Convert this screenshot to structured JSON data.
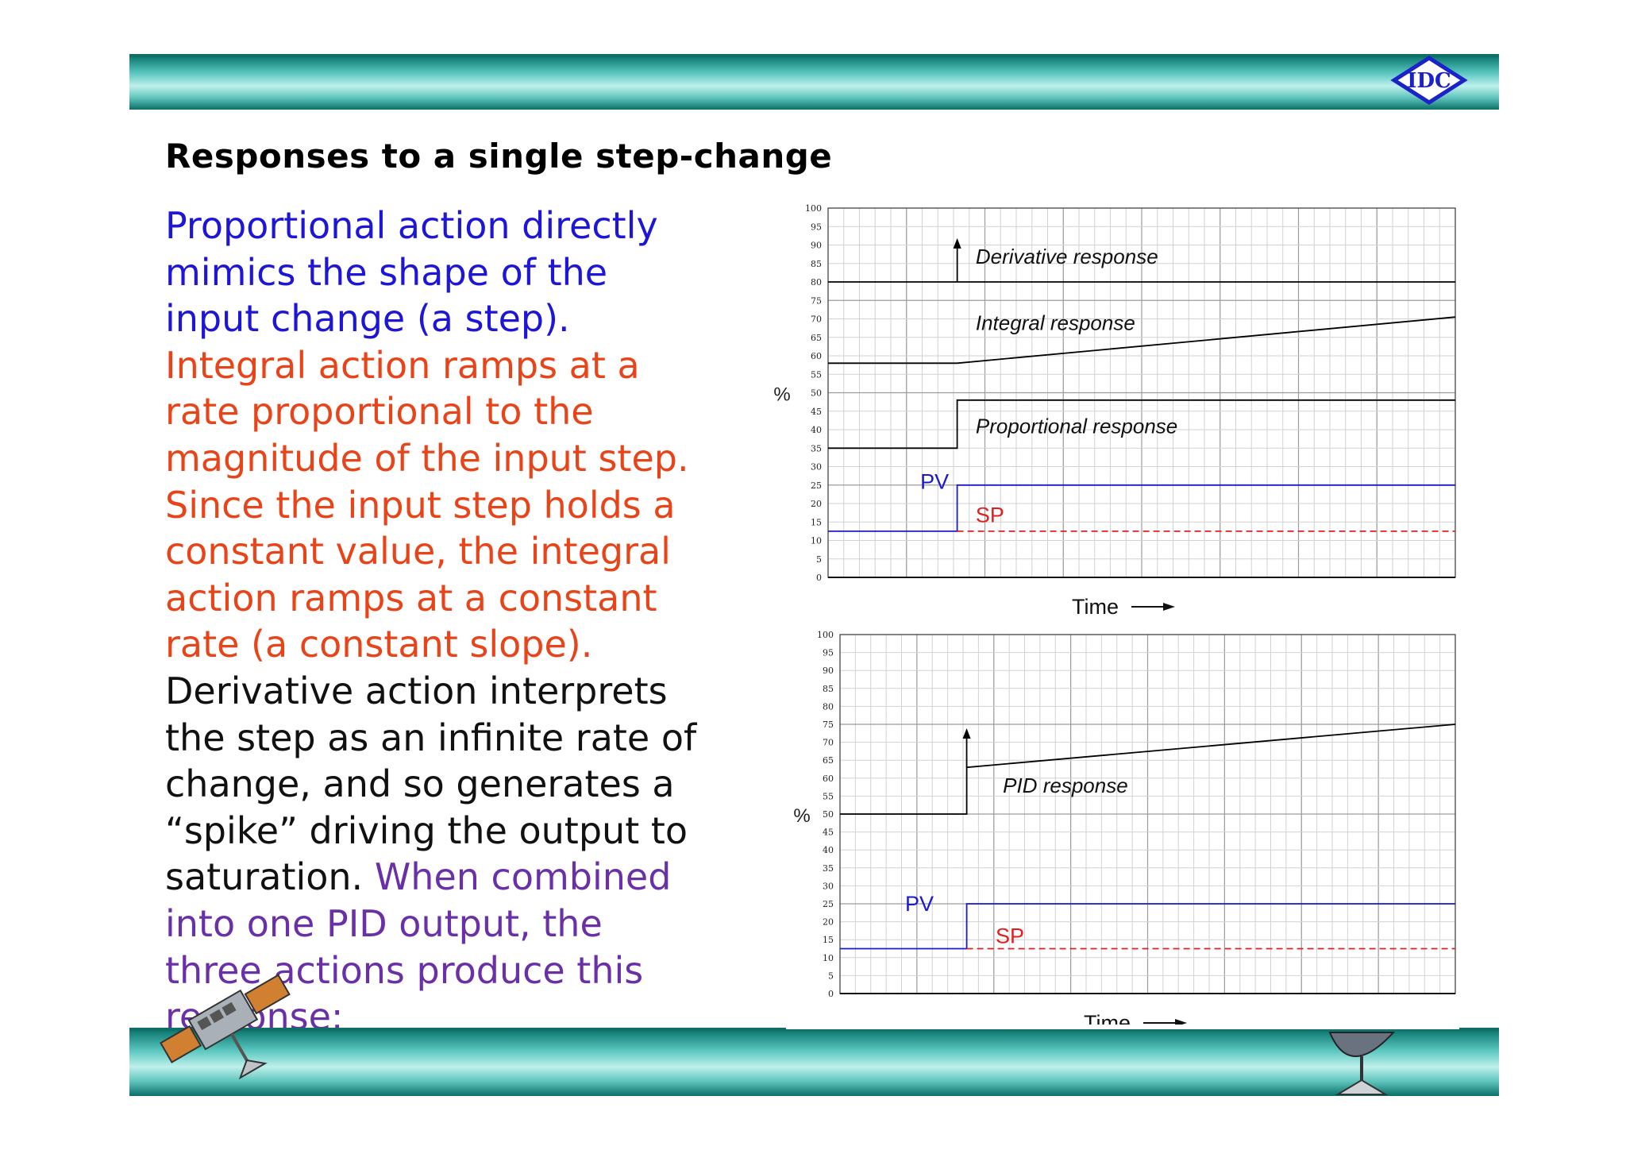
{
  "slide": {
    "title": "Responses to a single step-change",
    "logo_text": "IDC",
    "paragraph": [
      {
        "text": "Proportional action directly mimics the shape of the input change (a step). ",
        "color": "blue"
      },
      {
        "text": "Integral action ramps at a rate proportional to the magnitude of the input step. Since the input step holds a constant value, the integral action ramps at a constant rate (a constant slope). ",
        "color": "orange"
      },
      {
        "text": "Derivative action interprets the step as an infinite rate of change, and so generates a “spike” driving the output to saturation. ",
        "color": "black"
      },
      {
        "text": "When combined into one PID output, the three actions produce this response:",
        "color": "purple"
      }
    ]
  },
  "colors": {
    "band_dark": "#0f6e66",
    "band_light": "#bff0ec",
    "text_blue": "#1e16d6",
    "text_orange": "#e8441a",
    "text_purple": "#6a30a8",
    "pv": "#1a1ad0",
    "sp": "#e02020"
  },
  "chart_data": [
    {
      "type": "line",
      "ylabel": "%",
      "xlabel": "Time",
      "ylim": [
        0,
        100
      ],
      "yticks": [
        0,
        5,
        10,
        15,
        20,
        25,
        30,
        35,
        40,
        45,
        50,
        55,
        60,
        65,
        70,
        75,
        80,
        85,
        90,
        95,
        100
      ],
      "xlim": [
        0,
        34
      ],
      "step_x": 7,
      "grid": true,
      "series": [
        {
          "name": "Derivative response",
          "x": [
            0,
            7,
            7,
            34
          ],
          "y": [
            80,
            80,
            80,
            80
          ],
          "spike": {
            "x": 7,
            "from": 80,
            "to": 91
          },
          "color": "#000000",
          "label_at": [
            8,
            85
          ]
        },
        {
          "name": "Integral response",
          "x": [
            0,
            7,
            34
          ],
          "y": [
            58,
            58,
            70.5
          ],
          "color": "#000000",
          "label_at": [
            8,
            67
          ]
        },
        {
          "name": "Proportional response",
          "x": [
            0,
            7,
            7,
            34
          ],
          "y": [
            35,
            35,
            48,
            48
          ],
          "color": "#000000",
          "label_at": [
            8,
            39
          ]
        },
        {
          "name": "PV",
          "x": [
            0,
            7,
            7,
            34
          ],
          "y": [
            12.5,
            12.5,
            25,
            25
          ],
          "color": "#1a1ad0",
          "label_at": [
            5,
            24
          ]
        },
        {
          "name": "SP",
          "x": [
            7,
            34
          ],
          "y": [
            12.5,
            12.5
          ],
          "dashed": true,
          "color": "#e02020",
          "label_at": [
            8,
            15
          ]
        }
      ]
    },
    {
      "type": "line",
      "ylabel": "%",
      "xlabel": "Time",
      "ylim": [
        0,
        100
      ],
      "yticks": [
        0,
        5,
        10,
        15,
        20,
        25,
        30,
        35,
        40,
        45,
        50,
        55,
        60,
        65,
        70,
        75,
        80,
        85,
        90,
        95,
        100
      ],
      "xlim": [
        0,
        34
      ],
      "step_x": 7,
      "grid": true,
      "series": [
        {
          "name": "PID response",
          "x": [
            0,
            7,
            7,
            34
          ],
          "y": [
            50,
            50,
            63,
            75
          ],
          "spike": {
            "x": 7,
            "from": 63,
            "to": 73
          },
          "color": "#000000",
          "label_at": [
            9,
            56
          ]
        },
        {
          "name": "PV",
          "x": [
            0,
            7,
            7,
            34
          ],
          "y": [
            12.5,
            12.5,
            25,
            25
          ],
          "color": "#1a1ad0",
          "label_at": [
            3.6,
            23
          ]
        },
        {
          "name": "SP",
          "x": [
            7,
            34
          ],
          "y": [
            12.5,
            12.5
          ],
          "dashed": true,
          "color": "#e02020",
          "label_at": [
            8.6,
            14
          ]
        }
      ]
    }
  ]
}
